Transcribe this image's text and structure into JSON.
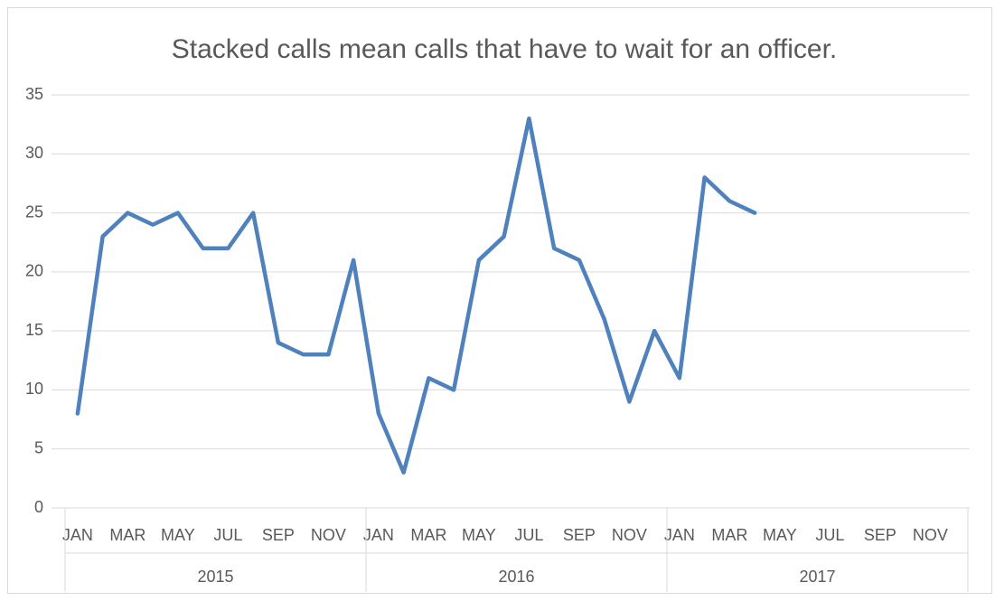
{
  "chart_data": {
    "type": "line",
    "title": "Stacked calls mean calls that have to wait for an officer.",
    "categories": [
      "JAN",
      null,
      "MAR",
      null,
      "MAY",
      null,
      "JUL",
      null,
      "SEP",
      null,
      "NOV",
      null,
      "JAN",
      null,
      "MAR",
      null,
      "MAY",
      null,
      "JUL",
      null,
      "SEP",
      null,
      "NOV",
      null,
      "JAN",
      null,
      "MAR",
      null,
      "MAY",
      null,
      "JUL",
      null,
      "SEP",
      null,
      "NOV",
      null
    ],
    "groups": [
      "2015",
      "2016",
      "2017"
    ],
    "series": [
      {
        "color": "#4f81bd",
        "values": [
          8,
          23,
          25,
          24,
          25,
          22,
          22,
          25,
          14,
          13,
          13,
          21,
          8,
          3,
          11,
          10,
          21,
          23,
          33,
          22,
          21,
          16,
          9,
          15,
          11,
          28,
          26,
          25,
          null,
          null,
          null,
          null,
          null,
          null,
          null,
          null
        ]
      }
    ],
    "ylim": [
      0,
      35
    ],
    "yticks": [
      0,
      5,
      10,
      15,
      20,
      25,
      30,
      35
    ],
    "grid": true
  }
}
